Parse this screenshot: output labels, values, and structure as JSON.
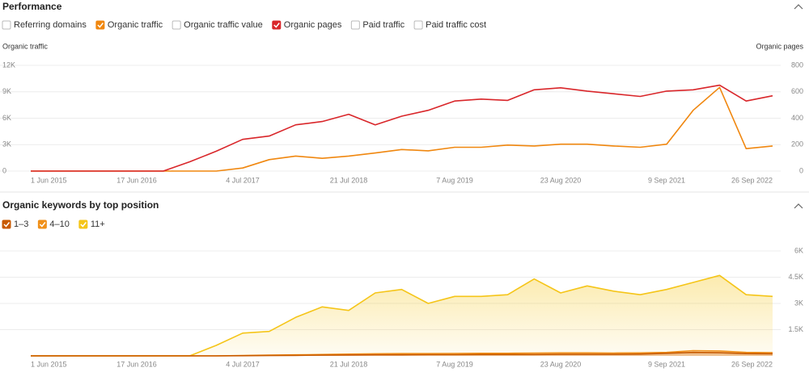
{
  "chart_data": [
    {
      "type": "line",
      "title": "Performance",
      "toggles": [
        {
          "label": "Referring domains",
          "checked": false
        },
        {
          "label": "Organic traffic",
          "checked": true
        },
        {
          "label": "Organic traffic value",
          "checked": false
        },
        {
          "label": "Organic pages",
          "checked": true
        },
        {
          "label": "Paid traffic",
          "checked": false
        },
        {
          "label": "Paid traffic cost",
          "checked": false
        }
      ],
      "categories": [
        "1 Jun 2015",
        null,
        null,
        null,
        "17 Jun 2016",
        null,
        null,
        null,
        "4 Jul 2017",
        null,
        null,
        null,
        "21 Jul 2018",
        null,
        null,
        null,
        "7 Aug 2019",
        null,
        null,
        null,
        "23 Aug 2020",
        null,
        null,
        null,
        "9 Sep 2021",
        null,
        null,
        null,
        "26 Sep 2022"
      ],
      "series": [
        {
          "name": "Organic traffic",
          "color": "#f0870f",
          "values": [
            0,
            0,
            0,
            0,
            0,
            0,
            0,
            0,
            350,
            1300,
            1700,
            1450,
            1700,
            2050,
            2450,
            2300,
            2700,
            2700,
            2950,
            2850,
            3050,
            3050,
            2850,
            2700,
            3050,
            6900,
            9500,
            2550,
            2850
          ]
        },
        {
          "name": "Organic pages",
          "color": "#d9262a",
          "axis": "y2",
          "values": [
            0,
            0,
            0,
            0,
            0,
            0,
            70,
            150,
            240,
            265,
            350,
            375,
            430,
            350,
            415,
            460,
            530,
            545,
            535,
            615,
            630,
            605,
            585,
            565,
            605,
            615,
            650,
            530,
            570
          ]
        }
      ],
      "ylim": [
        0,
        12000
      ],
      "yticks": [
        0,
        {
          "value": 3000,
          "label": "3K"
        },
        {
          "value": 6000,
          "label": "6K"
        },
        {
          "value": 9000,
          "label": "9K"
        },
        {
          "value": 12000,
          "label": "12K"
        }
      ],
      "y2lim": [
        0,
        800
      ],
      "y2ticks": [
        0,
        200,
        400,
        600,
        800
      ],
      "grid": true
    },
    {
      "type": "area",
      "title": "Organic keywords by top position",
      "categories": [
        "1 Jun 2015",
        null,
        null,
        null,
        "17 Jun 2016",
        null,
        null,
        null,
        "4 Jul 2017",
        null,
        null,
        null,
        "21 Jul 2018",
        null,
        null,
        null,
        "7 Aug 2019",
        null,
        null,
        null,
        "23 Aug 2020",
        null,
        null,
        null,
        "9 Sep 2021",
        null,
        null,
        null,
        "26 Sep 2022"
      ],
      "series": [
        {
          "name": "11+",
          "color": "#f5c518",
          "values": [
            0,
            0,
            0,
            0,
            0,
            0,
            0,
            600,
            1300,
            1400,
            2200,
            2800,
            2600,
            3600,
            3800,
            3000,
            3400,
            3400,
            3500,
            4400,
            3600,
            4000,
            3700,
            3500,
            3800,
            4200,
            4600,
            3500,
            3400
          ]
        },
        {
          "name": "4–10",
          "color": "#f0901a",
          "values": [
            0,
            0,
            0,
            0,
            0,
            0,
            0,
            0,
            20,
            40,
            60,
            80,
            100,
            120,
            130,
            130,
            140,
            150,
            150,
            160,
            170,
            170,
            160,
            170,
            200,
            300,
            280,
            200,
            180
          ]
        },
        {
          "name": "1–3",
          "color": "#c85a00",
          "values": [
            0,
            0,
            0,
            0,
            0,
            0,
            0,
            0,
            10,
            20,
            30,
            40,
            50,
            60,
            60,
            70,
            70,
            80,
            80,
            80,
            90,
            90,
            90,
            100,
            150,
            200,
            180,
            130,
            120
          ]
        }
      ],
      "ylim": [
        0,
        6000
      ],
      "yticks": [
        {
          "value": 1500,
          "label": "1.5K"
        },
        {
          "value": 3000,
          "label": "3K"
        },
        {
          "value": 4500,
          "label": "4.5K"
        },
        {
          "value": 6000,
          "label": "6K"
        }
      ],
      "grid": true
    }
  ]
}
